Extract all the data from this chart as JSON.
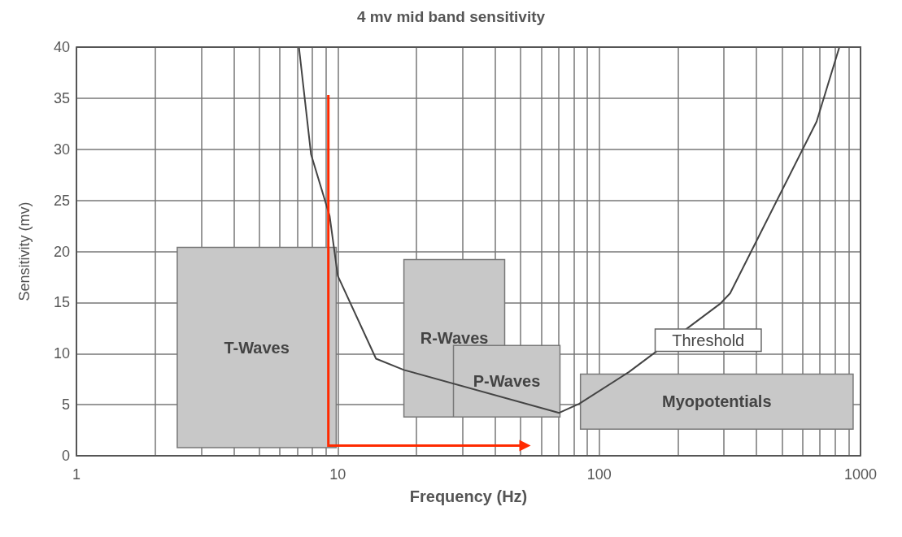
{
  "chart_data": {
    "type": "line",
    "title": "4 mv mid band sensitivity",
    "xlabel": "Frequency (Hz)",
    "ylabel": "Sensitivity (mv)",
    "x": [
      7.1,
      7.9,
      9.3,
      10,
      14,
      17.9,
      70.3,
      84,
      130,
      291,
      317,
      679,
      830
    ],
    "series": [
      {
        "name": "Threshold",
        "color": "#444444",
        "values": [
          40,
          29.5,
          23.5,
          17.6,
          9.5,
          8.4,
          4.2,
          5.1,
          8.2,
          14.9,
          15.9,
          32.7,
          40
        ]
      }
    ],
    "log": "x",
    "xlim": [
      1,
      1000
    ],
    "xticks": [
      1,
      10,
      100,
      1000
    ],
    "ylim": [
      0,
      40
    ],
    "yticks": [
      0,
      5,
      10,
      15,
      20,
      25,
      30,
      35,
      40
    ],
    "grid": true,
    "marker": "none",
    "bands": [
      {
        "axis": "x",
        "from": 2.43,
        "to": 9.86,
        "label": "T-Waves",
        "color": "#c8c8c8"
      },
      {
        "axis": "x",
        "from": 17.9,
        "to": 43.5,
        "label": "R-Waves",
        "color": "#c8c8c8"
      },
      {
        "axis": "x",
        "from": 27.7,
        "to": 70.8,
        "label": "P-Waves",
        "color": "#c8c8c8"
      },
      {
        "axis": "x",
        "from": 84.8,
        "to": 937,
        "label": "Myopotentials",
        "color": "#c8c8c8"
      }
    ]
  }
}
